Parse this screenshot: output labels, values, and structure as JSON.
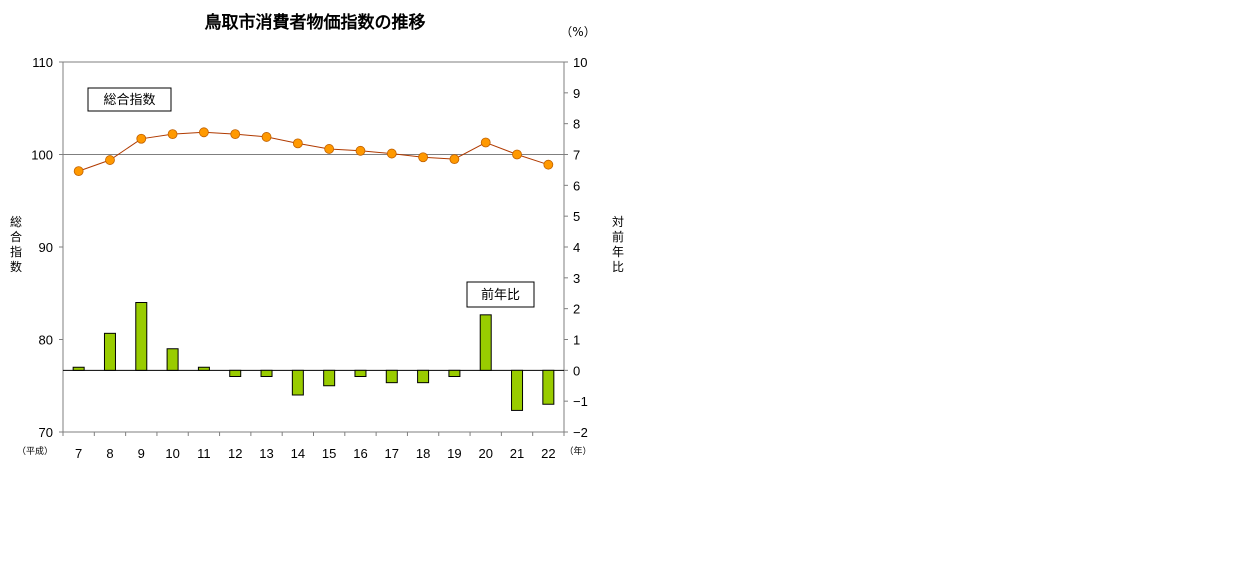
{
  "chart_data": {
    "type": "bar+line",
    "title": "鳥取市消費者物価指数の推移",
    "categories": [
      "7",
      "8",
      "9",
      "10",
      "11",
      "12",
      "13",
      "14",
      "15",
      "16",
      "17",
      "18",
      "19",
      "20",
      "21",
      "22"
    ],
    "x_era_label": "（平成）",
    "x_unit_label": "（年）",
    "left_axis": {
      "label": "総合指数",
      "ylim": [
        70,
        110
      ],
      "ticks": [
        "70",
        "80",
        "90",
        "100",
        "110"
      ]
    },
    "right_axis": {
      "label": "対前年比",
      "unit_label": "（%）",
      "ylim": [
        -2,
        10
      ],
      "ticks": [
        "−2",
        "−1",
        "0",
        "1",
        "2",
        "3",
        "4",
        "5",
        "6",
        "7",
        "8",
        "9",
        "10"
      ]
    },
    "series": [
      {
        "name": "総合指数",
        "type": "line",
        "axis": "left",
        "color": "#ff9900",
        "line_color": "#b03a00",
        "values": [
          98.2,
          99.4,
          101.7,
          102.2,
          102.4,
          102.2,
          101.9,
          101.2,
          100.6,
          100.4,
          100.1,
          99.7,
          99.5,
          101.3,
          100.0,
          98.9
        ]
      },
      {
        "name": "前年比",
        "type": "bar",
        "axis": "right",
        "color": "#99cc00",
        "values": [
          0.1,
          1.2,
          2.2,
          0.7,
          0.1,
          -0.2,
          -0.2,
          -0.8,
          -0.5,
          -0.2,
          -0.4,
          -0.4,
          -0.2,
          1.8,
          -1.3,
          -1.1
        ]
      }
    ],
    "reference_line": 100,
    "grid": false,
    "legend": "none"
  }
}
